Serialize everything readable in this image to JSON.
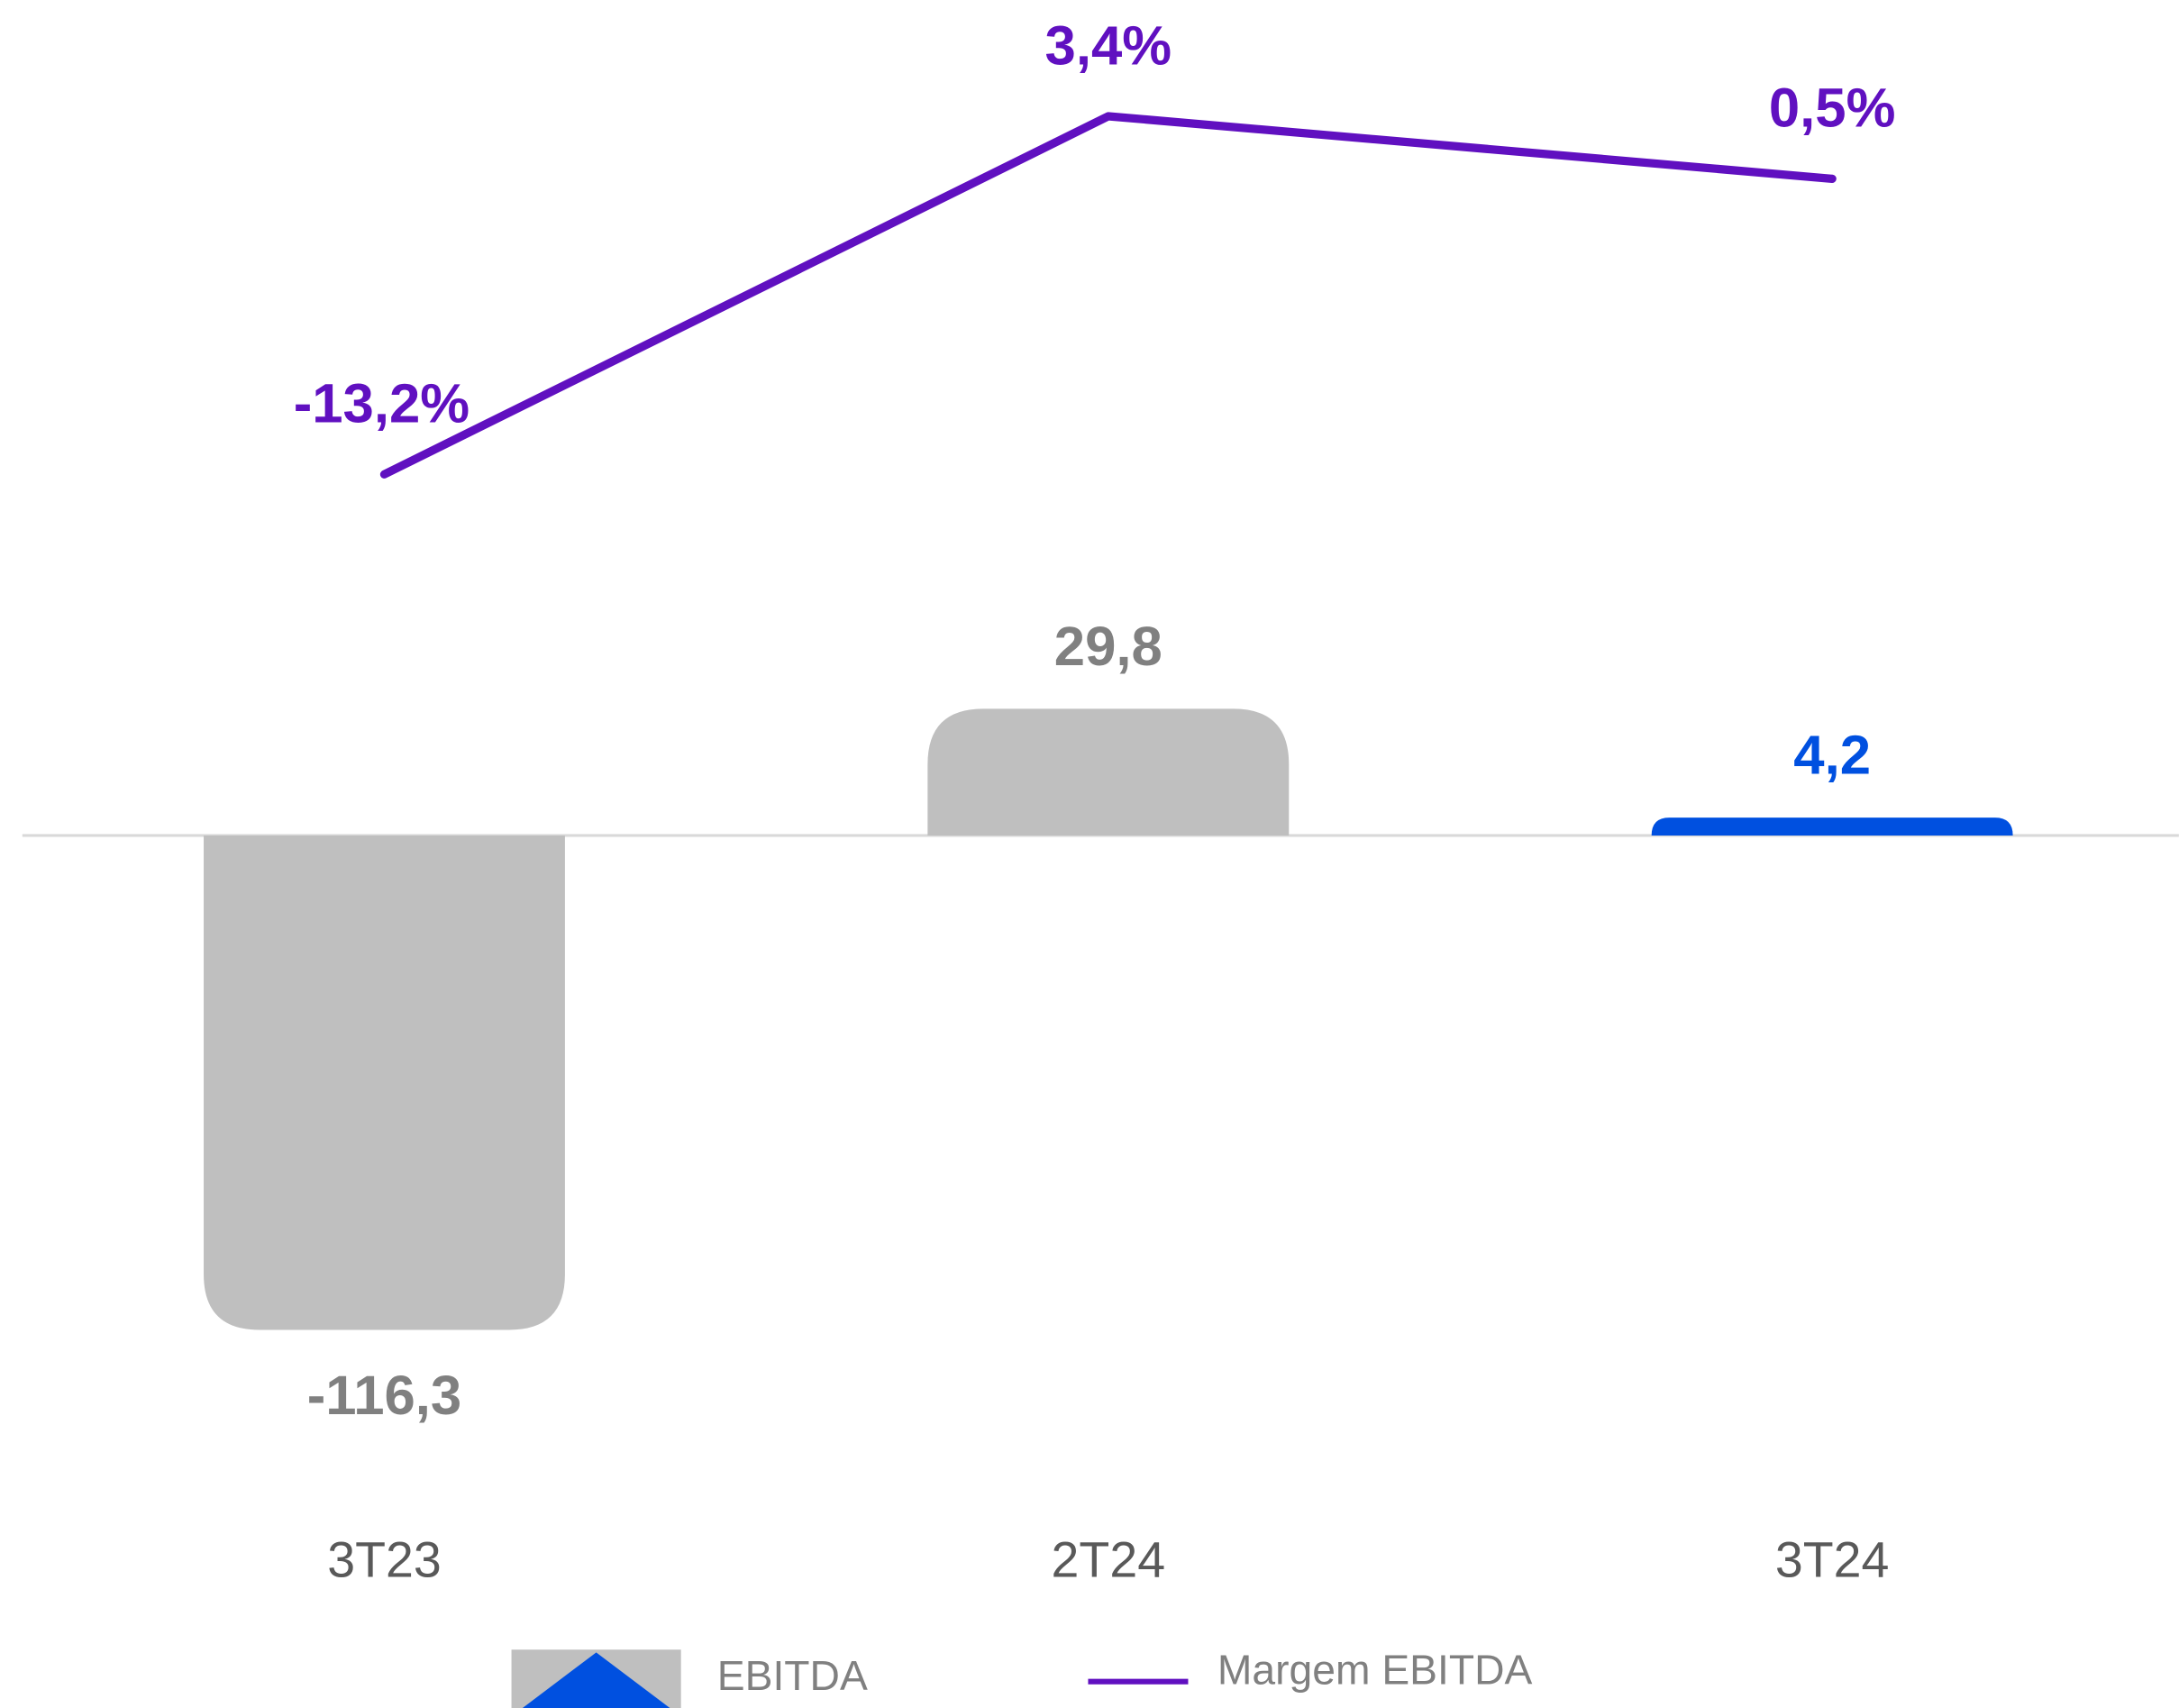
{
  "chart_data": {
    "type": "bar",
    "categories": [
      "3T23",
      "2T24",
      "3T24"
    ],
    "series": [
      {
        "name": "EBITDA",
        "type": "bar",
        "colors": [
          "#bfbfbf",
          "#bfbfbf",
          "#0050e0"
        ],
        "label_colors": [
          "#808080",
          "#808080",
          "#0050e0"
        ],
        "values": [
          -116.3,
          29.8,
          4.2
        ],
        "value_labels": [
          "-116,3",
          "29,8",
          "4,2"
        ]
      },
      {
        "name": "Margem EBITDA",
        "type": "line",
        "axis": "y2",
        "color": "#6010c0",
        "values": [
          -13.2,
          3.4,
          0.5
        ],
        "value_labels": [
          "-13,2%",
          "3,4%",
          "0,5%"
        ]
      }
    ],
    "ylim": [
      -150,
      190
    ],
    "y2lim": [
      -59.5,
      7.5
    ]
  }
}
